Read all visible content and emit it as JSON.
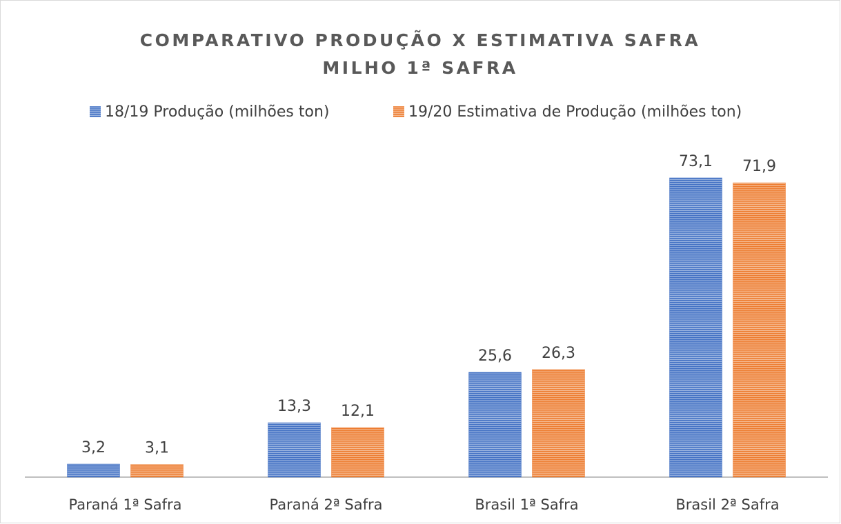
{
  "chart_data": {
    "type": "bar",
    "title": "COMPARATIVO PRODUÇÃO X ESTIMATIVA SAFRA",
    "subtitle": "MILHO 1ª SAFRA",
    "categories": [
      "Paraná 1ª Safra",
      "Paraná 2ª Safra",
      "Brasil 1ª Safra",
      "Brasil 2ª Safra"
    ],
    "series": [
      {
        "name": "18/19 Produção (milhões ton)",
        "color": "#4472c4",
        "values": [
          3.2,
          13.3,
          25.6,
          73.1
        ],
        "value_labels": [
          "3,2",
          "13,3",
          "25,6",
          "73,1"
        ]
      },
      {
        "name": "19/20 Estimativa de Produção (milhões ton)",
        "color": "#ed7d31",
        "values": [
          3.1,
          12.1,
          26.3,
          71.9
        ],
        "value_labels": [
          "3,1",
          "12,1",
          "26,3",
          "71,9"
        ]
      }
    ],
    "ylim": [
      0,
      80
    ],
    "legend": "top"
  }
}
